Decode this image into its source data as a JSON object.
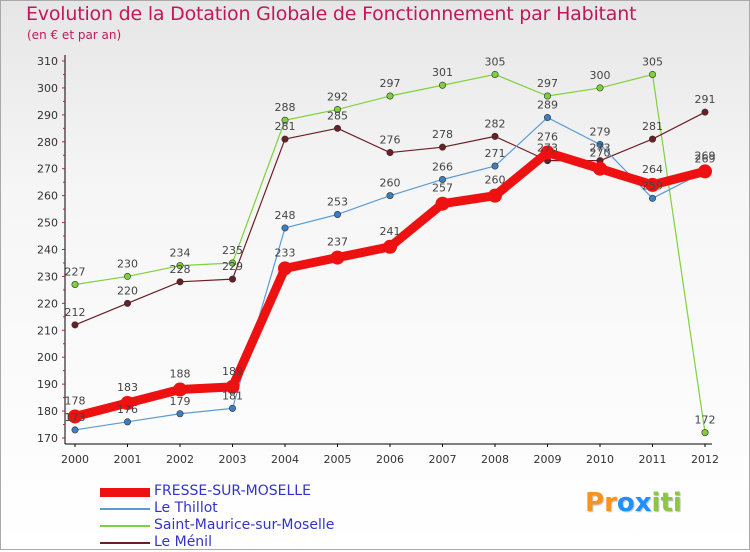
{
  "colors": {
    "title": "#c2185b",
    "axis": "#000000",
    "tick_label": "#333333",
    "data_label": "#444444",
    "legend_text": "#3333cc"
  },
  "chart_data": {
    "type": "line",
    "title": "Evolution de la Dotation Globale de Fonctionnement par Habitant",
    "subtitle": "(en € et par an)",
    "xlabel": "",
    "ylabel": "",
    "categories": [
      "2000",
      "2001",
      "2002",
      "2003",
      "2004",
      "2005",
      "2006",
      "2007",
      "2008",
      "2009",
      "2010",
      "2011",
      "2012"
    ],
    "ylim": [
      170,
      310
    ],
    "yticks": [
      170,
      180,
      190,
      200,
      210,
      220,
      230,
      240,
      250,
      260,
      270,
      280,
      290,
      300,
      310
    ],
    "grid": false,
    "legend_position": "bottom-left",
    "series": [
      {
        "name": "Saint-Maurice-sur-Moselle",
        "color": "#7fd13b",
        "marker": "#7fd13b",
        "width": 1.2,
        "values": [
          227,
          230,
          234,
          235,
          288,
          292,
          297,
          301,
          305,
          297,
          300,
          305,
          172
        ]
      },
      {
        "name": "Le Ménil",
        "color": "#6b1e24",
        "marker": "#6b1e24",
        "width": 1.2,
        "values": [
          212,
          220,
          228,
          229,
          281,
          285,
          276,
          278,
          282,
          273,
          273,
          281,
          291
        ]
      },
      {
        "name": "Le Thillot",
        "color": "#5b9bd5",
        "marker": "#3a7fc1",
        "width": 1.2,
        "values": [
          173,
          176,
          179,
          181,
          248,
          253,
          260,
          266,
          271,
          289,
          279,
          259,
          269
        ]
      },
      {
        "name": "FRESSE-SUR-MOSELLE",
        "color": "#ee1111",
        "marker": "#ee1111",
        "width": 9,
        "values": [
          178,
          183,
          188,
          189,
          233,
          237,
          241,
          257,
          260,
          276,
          270,
          264,
          269
        ]
      }
    ],
    "legend": [
      {
        "name": "FRESSE-SUR-MOSELLE",
        "color": "#ee1111",
        "width": 9
      },
      {
        "name": "Le Thillot",
        "color": "#5b9bd5",
        "width": 2
      },
      {
        "name": "Saint-Maurice-sur-Moselle",
        "color": "#7fd13b",
        "width": 2
      },
      {
        "name": "Le Ménil",
        "color": "#6b1e24",
        "width": 2
      }
    ]
  },
  "logo": {
    "letters": [
      "P",
      "r",
      "o",
      "x",
      "i",
      "t",
      "i"
    ],
    "colors": [
      "#f7941d",
      "#f7941d",
      "#1e90ff",
      "#1e90ff",
      "#8dc63f",
      "#8dc63f",
      "#8dc63f"
    ]
  }
}
